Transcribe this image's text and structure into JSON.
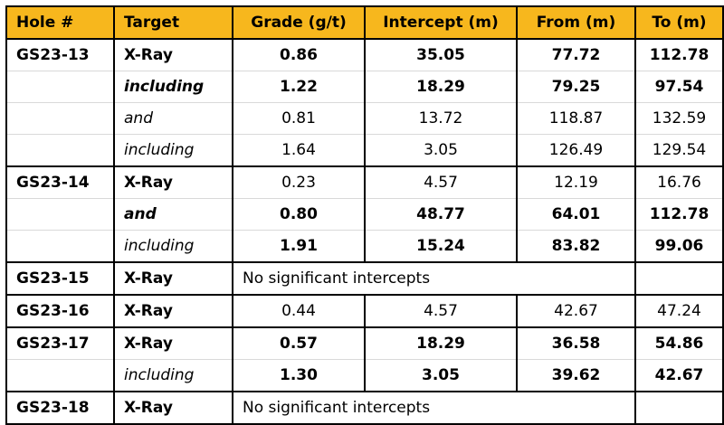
{
  "columns": [
    "Hole #",
    "Target",
    "Grade (g/t)",
    "Intercept (m)",
    "From (m)",
    "To (m)"
  ],
  "rows": [
    {
      "hole": "GS23-13",
      "target": "X-Ray",
      "grade": "0.86",
      "intercept": "35.05",
      "from": "77.72",
      "to": "112.78",
      "target_style": "bold",
      "values_bold": true,
      "group_start": true
    },
    {
      "hole": "",
      "target": "including",
      "grade": "1.22",
      "intercept": "18.29",
      "from": "79.25",
      "to": "97.54",
      "target_style": "bold-italic",
      "values_bold": true,
      "group_start": false
    },
    {
      "hole": "",
      "target": "and",
      "grade": "0.81",
      "intercept": "13.72",
      "from": "118.87",
      "to": "132.59",
      "target_style": "italic",
      "values_bold": false,
      "group_start": false
    },
    {
      "hole": "",
      "target": "including",
      "grade": "1.64",
      "intercept": "3.05",
      "from": "126.49",
      "to": "129.54",
      "target_style": "italic",
      "values_bold": false,
      "group_start": false
    },
    {
      "hole": "GS23-14",
      "target": "X-Ray",
      "grade": "0.23",
      "intercept": "4.57",
      "from": "12.19",
      "to": "16.76",
      "target_style": "bold",
      "values_bold": false,
      "group_start": true
    },
    {
      "hole": "",
      "target": "and",
      "grade": "0.80",
      "intercept": "48.77",
      "from": "64.01",
      "to": "112.78",
      "target_style": "bold-italic",
      "values_bold": true,
      "group_start": false
    },
    {
      "hole": "",
      "target": "including",
      "grade": "1.91",
      "intercept": "15.24",
      "from": "83.82",
      "to": "99.06",
      "target_style": "italic",
      "values_bold": true,
      "group_start": false
    },
    {
      "hole": "GS23-15",
      "target": "X-Ray",
      "note": "No significant intercepts",
      "target_style": "bold",
      "values_bold": false,
      "group_start": true
    },
    {
      "hole": "GS23-16",
      "target": "X-Ray",
      "grade": "0.44",
      "intercept": "4.57",
      "from": "42.67",
      "to": "47.24",
      "target_style": "bold",
      "values_bold": false,
      "group_start": true
    },
    {
      "hole": "GS23-17",
      "target": "X-Ray",
      "grade": "0.57",
      "intercept": "18.29",
      "from": "36.58",
      "to": "54.86",
      "target_style": "bold",
      "values_bold": true,
      "group_start": true
    },
    {
      "hole": "",
      "target": "including",
      "grade": "1.30",
      "intercept": "3.05",
      "from": "39.62",
      "to": "42.67",
      "target_style": "italic",
      "values_bold": true,
      "group_start": false
    },
    {
      "hole": "GS23-18",
      "target": "X-Ray",
      "note": "No significant intercepts",
      "target_style": "bold",
      "values_bold": false,
      "group_start": true
    }
  ],
  "colors": {
    "header_bg": "#f7b71d",
    "border": "#000000",
    "row_divider": "#d9d9d9"
  }
}
